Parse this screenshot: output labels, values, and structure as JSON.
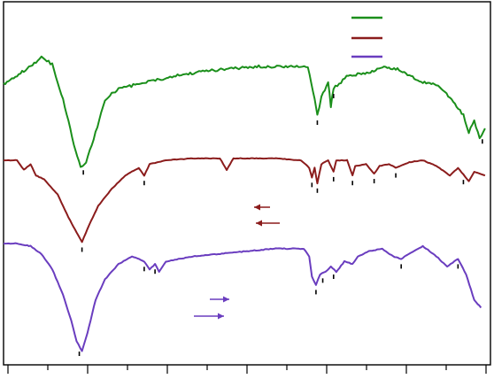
{
  "chart_data": {
    "type": "line",
    "title": "",
    "xlabel": "",
    "ylabel": "",
    "x_axis": {
      "range": [
        4000,
        400
      ],
      "tick_labels_shown": false,
      "major_ticks": 7,
      "minor_ticks": 7
    },
    "legend": {
      "placement": "top-right",
      "entries": [
        {
          "color": "#1b8f1b",
          "label": ""
        },
        {
          "color": "#8b1c1c",
          "label": ""
        },
        {
          "color": "#6a3dbf",
          "label": ""
        }
      ]
    },
    "colors": {
      "top": "#1b8f1b",
      "middle": "#8b1c1c",
      "bottom": "#6a3dbf"
    },
    "series": [
      {
        "color": "#1b8f1b",
        "points": [
          [
            4000,
            0.62
          ],
          [
            3900,
            0.66
          ],
          [
            3800,
            0.7
          ],
          [
            3720,
            0.74
          ],
          [
            3640,
            0.71
          ],
          [
            3560,
            0.55
          ],
          [
            3480,
            0.35
          ],
          [
            3430,
            0.24
          ],
          [
            3390,
            0.27
          ],
          [
            3320,
            0.4
          ],
          [
            3250,
            0.55
          ],
          [
            3150,
            0.6
          ],
          [
            3000,
            0.62
          ],
          [
            2850,
            0.64
          ],
          [
            2700,
            0.66
          ],
          [
            2500,
            0.68
          ],
          [
            2300,
            0.69
          ],
          [
            2100,
            0.7
          ],
          [
            1900,
            0.7
          ],
          [
            1750,
            0.7
          ],
          [
            1700,
            0.55
          ],
          [
            1680,
            0.48
          ],
          [
            1650,
            0.56
          ],
          [
            1600,
            0.63
          ],
          [
            1580,
            0.52
          ],
          [
            1560,
            0.6
          ],
          [
            1450,
            0.66
          ],
          [
            1300,
            0.67
          ],
          [
            1200,
            0.7
          ],
          [
            1100,
            0.69
          ],
          [
            1000,
            0.66
          ],
          [
            900,
            0.63
          ],
          [
            800,
            0.62
          ],
          [
            700,
            0.56
          ],
          [
            600,
            0.48
          ],
          [
            560,
            0.4
          ],
          [
            520,
            0.46
          ],
          [
            480,
            0.37
          ],
          [
            440,
            0.42
          ]
        ],
        "marked_peaks": [
          3410,
          1680,
          1560,
          460
        ]
      },
      {
        "color": "#8b1c1c",
        "points": [
          [
            4000,
            0.6
          ],
          [
            3900,
            0.6
          ],
          [
            3850,
            0.55
          ],
          [
            3800,
            0.58
          ],
          [
            3760,
            0.52
          ],
          [
            3700,
            0.5
          ],
          [
            3600,
            0.42
          ],
          [
            3520,
            0.3
          ],
          [
            3460,
            0.22
          ],
          [
            3420,
            0.17
          ],
          [
            3380,
            0.24
          ],
          [
            3300,
            0.36
          ],
          [
            3200,
            0.45
          ],
          [
            3100,
            0.52
          ],
          [
            3000,
            0.56
          ],
          [
            2960,
            0.52
          ],
          [
            2920,
            0.58
          ],
          [
            2800,
            0.6
          ],
          [
            2600,
            0.61
          ],
          [
            2400,
            0.61
          ],
          [
            2350,
            0.55
          ],
          [
            2300,
            0.61
          ],
          [
            2000,
            0.61
          ],
          [
            1800,
            0.6
          ],
          [
            1740,
            0.56
          ],
          [
            1720,
            0.51
          ],
          [
            1700,
            0.56
          ],
          [
            1680,
            0.48
          ],
          [
            1650,
            0.58
          ],
          [
            1600,
            0.6
          ],
          [
            1560,
            0.54
          ],
          [
            1540,
            0.6
          ],
          [
            1460,
            0.6
          ],
          [
            1420,
            0.52
          ],
          [
            1400,
            0.57
          ],
          [
            1320,
            0.58
          ],
          [
            1260,
            0.53
          ],
          [
            1220,
            0.57
          ],
          [
            1150,
            0.58
          ],
          [
            1100,
            0.56
          ],
          [
            1000,
            0.59
          ],
          [
            900,
            0.6
          ],
          [
            800,
            0.57
          ],
          [
            700,
            0.52
          ],
          [
            640,
            0.56
          ],
          [
            560,
            0.49
          ],
          [
            520,
            0.54
          ],
          [
            480,
            0.53
          ],
          [
            440,
            0.52
          ]
        ],
        "marked_peaks": [
          3420,
          2960,
          1720,
          1680,
          1560,
          1420,
          1260,
          1100,
          600
        ]
      },
      {
        "color": "#6a3dbf",
        "points": [
          [
            4000,
            0.3
          ],
          [
            3900,
            0.3
          ],
          [
            3800,
            0.29
          ],
          [
            3720,
            0.26
          ],
          [
            3640,
            0.2
          ],
          [
            3560,
            0.1
          ],
          [
            3500,
            0.0
          ],
          [
            3460,
            -0.08
          ],
          [
            3420,
            -0.12
          ],
          [
            3380,
            -0.05
          ],
          [
            3320,
            0.08
          ],
          [
            3250,
            0.16
          ],
          [
            3150,
            0.22
          ],
          [
            3050,
            0.25
          ],
          [
            2960,
            0.23
          ],
          [
            2920,
            0.2
          ],
          [
            2880,
            0.22
          ],
          [
            2850,
            0.19
          ],
          [
            2800,
            0.23
          ],
          [
            2600,
            0.25
          ],
          [
            2400,
            0.26
          ],
          [
            2200,
            0.27
          ],
          [
            2000,
            0.28
          ],
          [
            1900,
            0.28
          ],
          [
            1780,
            0.28
          ],
          [
            1740,
            0.25
          ],
          [
            1720,
            0.17
          ],
          [
            1690,
            0.14
          ],
          [
            1660,
            0.18
          ],
          [
            1620,
            0.19
          ],
          [
            1580,
            0.21
          ],
          [
            1540,
            0.19
          ],
          [
            1480,
            0.23
          ],
          [
            1420,
            0.22
          ],
          [
            1380,
            0.25
          ],
          [
            1300,
            0.27
          ],
          [
            1200,
            0.28
          ],
          [
            1120,
            0.25
          ],
          [
            1060,
            0.24
          ],
          [
            1000,
            0.26
          ],
          [
            900,
            0.29
          ],
          [
            800,
            0.25
          ],
          [
            720,
            0.21
          ],
          [
            640,
            0.24
          ],
          [
            580,
            0.18
          ],
          [
            520,
            0.08
          ],
          [
            470,
            0.05
          ]
        ],
        "marked_peaks": [
          3440,
          2960,
          2880,
          1690,
          1640,
          1560,
          1060,
          640
        ]
      }
    ],
    "annotations": [
      {
        "kind": "arrow",
        "color": "#8b1c1c",
        "direction": "left"
      },
      {
        "kind": "arrow",
        "color": "#8b1c1c",
        "direction": "left"
      },
      {
        "kind": "arrow",
        "color": "#6a3dbf",
        "direction": "right"
      },
      {
        "kind": "arrow",
        "color": "#6a3dbf",
        "direction": "right"
      }
    ]
  }
}
